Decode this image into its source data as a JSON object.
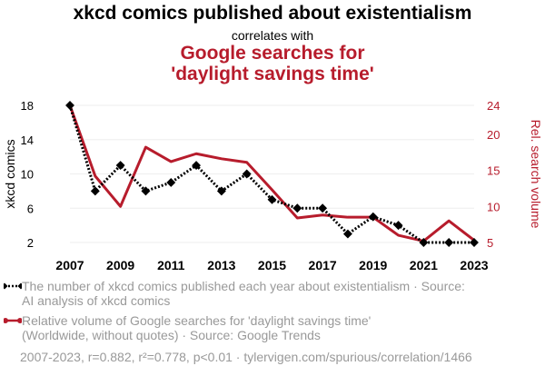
{
  "chart_data": {
    "type": "line",
    "title": "xkcd comics published about existentialism",
    "subtitle": "correlates with",
    "title2": "Google searches for 'daylight savings time'",
    "x": [
      2007,
      2008,
      2009,
      2010,
      2011,
      2012,
      2013,
      2014,
      2015,
      2016,
      2017,
      2018,
      2019,
      2020,
      2021,
      2022,
      2023
    ],
    "xticks": [
      "2007",
      "2009",
      "2011",
      "2013",
      "2015",
      "2017",
      "2019",
      "2021",
      "2023"
    ],
    "series": [
      {
        "name": "The number of xkcd comics published each year about existentialism · Source: AI analysis of xkcd comics",
        "axis": "left",
        "color": "#000000",
        "style": "dotted",
        "marker": "diamond",
        "values": [
          18,
          8,
          11,
          8,
          9,
          11,
          8,
          10,
          7,
          6,
          6,
          3,
          5,
          4,
          2,
          2,
          2
        ]
      },
      {
        "name": "Relative volume of Google searches for 'daylight savings time' (Worldwide, without quotes) · Source: Google Trends",
        "axis": "right",
        "color": "#b71c2c",
        "style": "solid",
        "marker": "circle",
        "values": [
          24,
          14.2,
          10,
          18.2,
          16.2,
          17.3,
          16.6,
          16.1,
          12.3,
          8.4,
          8.8,
          8.5,
          8.5,
          6,
          5.2,
          8,
          5.3
        ]
      }
    ],
    "ylabel_left": "xkcd comics",
    "ylabel_right": "Rel. search volume",
    "yticks_left": [
      2,
      6,
      10,
      14,
      18
    ],
    "yticks_right": [
      5,
      10,
      15,
      20,
      24
    ],
    "ylim_left": [
      2,
      18
    ],
    "ylim_right": [
      5,
      24
    ],
    "xlim": [
      2007,
      2023
    ],
    "grid": "horizontal",
    "legend_placement": "bottom"
  },
  "legend": {
    "item1_line1": "The number of xkcd comics published each year about existentialism · Source:",
    "item1_line2": "AI analysis of xkcd comics",
    "item2_line1": "Relative volume of Google searches for 'daylight savings time'",
    "item2_line2": "(Worldwide, without quotes) · Source: Google Trends"
  },
  "footer": "2007-2023, r=0.882, r²=0.778, p<0.01 · tylervigen.com/spurious/correlation/1466",
  "colors": {
    "series1": "#000000",
    "series2": "#b71c2c",
    "muted": "#999999"
  }
}
